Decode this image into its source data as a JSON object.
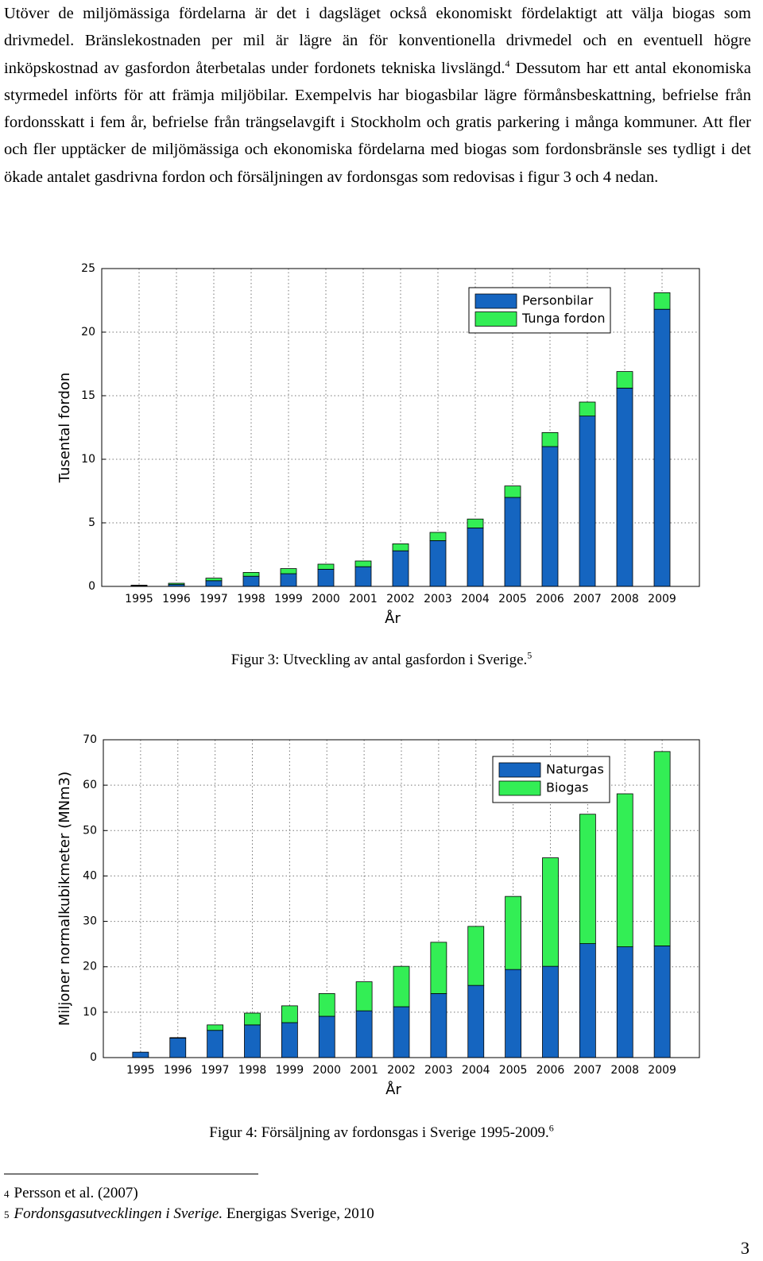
{
  "paragraph": {
    "text_1": "Utöver de miljömässiga fördelarna är det i dagsläget också ekonomiskt fördelaktigt att välja biogas som drivmedel. Bränslekostnaden per mil är lägre än för konventionella drivmedel och en eventuell högre inköpskostnad av gasfordon återbetalas under fordonets tekniska livslängd.",
    "note_ref": "4",
    "text_2": "Dessutom har ett antal ekonomiska styrmedel införts för att främja miljöbilar. Exempelvis har biogasbilar lägre förmånsbeskattning, befrielse från fordonsskatt i fem år, befrielse från trängselavgift i Stockholm och gratis parkering i många kommuner. Att fler och fler upptäcker de miljömässiga och ekonomiska fördelarna med biogas som fordonsbränsle ses tydligt i det ökade antalet gasdrivna fordon och försäljningen av fordonsgas som redovisas i figur 3 och 4 nedan."
  },
  "chart_data": [
    {
      "type": "stacked_bar",
      "title": "Figur 3: Utveckling av antal gasfordon i Sverige.",
      "title_note": "5",
      "x_label": "År",
      "y_label": "Tusental fordon",
      "categories": [
        "1995",
        "1996",
        "1997",
        "1998",
        "1999",
        "2000",
        "2001",
        "2002",
        "2003",
        "2004",
        "2005",
        "2006",
        "2007",
        "2008",
        "2009"
      ],
      "series": [
        {
          "name": "Personbilar",
          "color": "#1565c0",
          "values": [
            0.05,
            0.15,
            0.45,
            0.8,
            1.0,
            1.35,
            1.55,
            2.8,
            3.6,
            4.6,
            7.0,
            11.0,
            13.4,
            15.6,
            21.8
          ]
        },
        {
          "name": "Tunga fordon",
          "color": "#33ee55",
          "values": [
            0.05,
            0.1,
            0.2,
            0.3,
            0.4,
            0.4,
            0.45,
            0.55,
            0.65,
            0.7,
            0.9,
            1.1,
            1.1,
            1.3,
            1.3
          ]
        }
      ],
      "ylim": [
        0,
        25
      ],
      "yticks": [
        0,
        5,
        10,
        15,
        20,
        25
      ],
      "grid": true,
      "legend": "upper-right"
    },
    {
      "type": "stacked_bar",
      "title": "Figur 4: Försäljning av fordonsgas i Sverige 1995-2009.",
      "title_note": "6",
      "x_label": "År",
      "y_label": "Miljoner normalkubikmeter (MNm3)",
      "categories": [
        "1995",
        "1996",
        "1997",
        "1998",
        "1999",
        "2000",
        "2001",
        "2002",
        "2003",
        "2004",
        "2005",
        "2006",
        "2007",
        "2008",
        "2009"
      ],
      "series": [
        {
          "name": "Naturgas",
          "color": "#1565c0",
          "values": [
            1.2,
            4.3,
            6.0,
            7.2,
            7.7,
            9.1,
            10.3,
            11.2,
            14.1,
            15.9,
            19.4,
            20.1,
            25.1,
            24.4,
            24.6
          ]
        },
        {
          "name": "Biogas",
          "color": "#33ee55",
          "values": [
            0,
            0.1,
            1.2,
            2.6,
            3.7,
            5.0,
            6.4,
            8.9,
            11.3,
            13.0,
            16.1,
            23.9,
            28.5,
            33.7,
            42.8
          ]
        }
      ],
      "ylim": [
        0,
        70
      ],
      "yticks": [
        0,
        10,
        20,
        30,
        40,
        50,
        60,
        70
      ],
      "grid": true,
      "legend": "upper-right"
    }
  ],
  "footnotes": [
    {
      "number": "4",
      "text": "Persson et al. (2007)"
    },
    {
      "number": "5",
      "title": "Fordonsgasutvecklingen i Sverige.",
      "text": "Energigas Sverige, 2010"
    }
  ],
  "page_number": "3"
}
